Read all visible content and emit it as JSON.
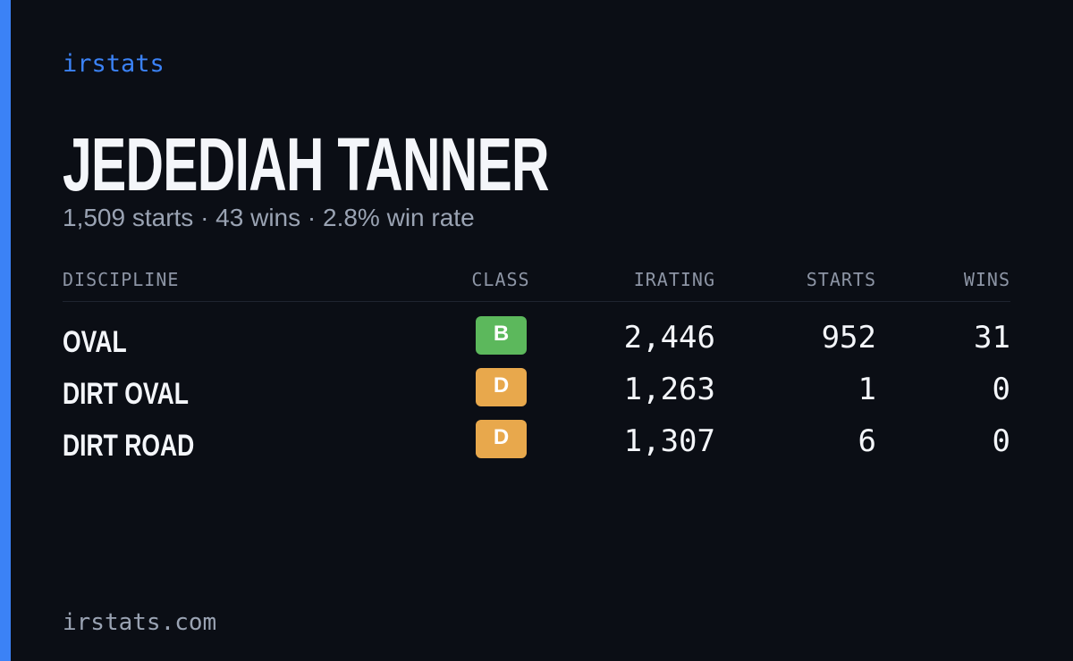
{
  "brand": "irstats",
  "profile": {
    "name": "JEDEDIAH TANNER",
    "summary": "1,509 starts · 43 wins · 2.8% win rate"
  },
  "table": {
    "headers": [
      "DISCIPLINE",
      "CLASS",
      "IRATING",
      "STARTS",
      "WINS"
    ],
    "rows": [
      {
        "discipline": "OVAL",
        "class": "B",
        "class_color": "#5cb85c",
        "irating": "2,446",
        "starts": "952",
        "wins": "31"
      },
      {
        "discipline": "DIRT OVAL",
        "class": "D",
        "class_color": "#e8a84c",
        "irating": "1,263",
        "starts": "1",
        "wins": "0"
      },
      {
        "discipline": "DIRT ROAD",
        "class": "D",
        "class_color": "#e8a84c",
        "irating": "1,307",
        "starts": "6",
        "wins": "0"
      }
    ]
  },
  "footer": "irstats.com"
}
